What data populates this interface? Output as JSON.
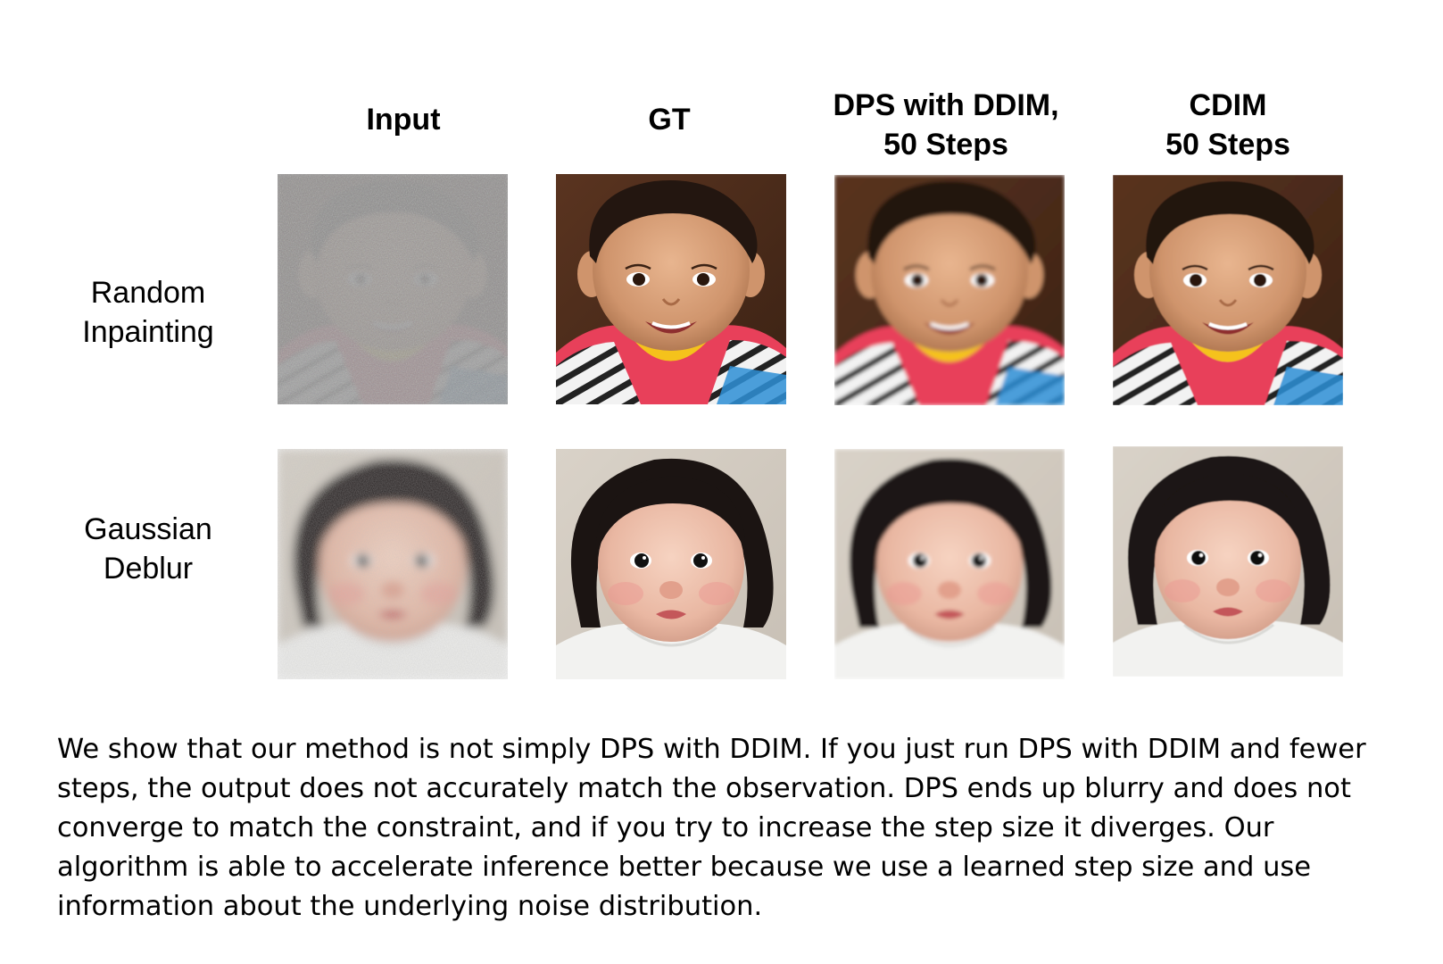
{
  "columns": [
    {
      "label": "Input"
    },
    {
      "label": "GT"
    },
    {
      "label": "DPS with DDIM,\n50 Steps"
    },
    {
      "label": "CDIM\n50 Steps"
    }
  ],
  "rows": [
    {
      "label": "Random\nInpainting"
    },
    {
      "label": "Gaussian\nDeblur"
    }
  ],
  "caption": "We show that our method is not simply DPS with DDIM. If you just run DPS with DDIM and fewer steps, the output does not accurately match the observation. DPS ends up blurry and does not converge to match the constraint, and if you try to increase the step size it diverges. Our algorithm is able to accelerate inference better because we use a learned step size and use information about the underlying noise distribution."
}
